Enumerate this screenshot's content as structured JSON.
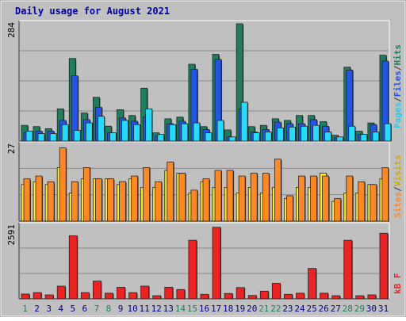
{
  "chart_data": {
    "type": "bar",
    "title": "Daily usage for August 2021",
    "categories": [
      "1",
      "2",
      "3",
      "4",
      "5",
      "6",
      "7",
      "8",
      "9",
      "10",
      "11",
      "12",
      "13",
      "14",
      "15",
      "16",
      "17",
      "18",
      "19",
      "20",
      "21",
      "22",
      "23",
      "24",
      "25",
      "26",
      "27",
      "28",
      "29",
      "30",
      "31"
    ],
    "weekend_days": [
      "1",
      "7",
      "8",
      "14",
      "15",
      "21",
      "22",
      "28",
      "29"
    ],
    "panels": [
      {
        "id": "hits-panel",
        "ymax_label": "284",
        "ymax": 284,
        "series": [
          {
            "name": "Hits",
            "color": "#1e7e5e",
            "values": [
              38,
              35,
              30,
              78,
              200,
              68,
              106,
              36,
              76,
              62,
              128,
              20,
              54,
              58,
              186,
              35,
              210,
              27,
              284,
              35,
              38,
              54,
              50,
              62,
              62,
              47,
              14,
              179,
              24,
              44,
              208
            ]
          },
          {
            "name": "Files",
            "color": "#2255ee",
            "values": [
              20,
              24,
              24,
              50,
              158,
              52,
              82,
              20,
              56,
              48,
              58,
              12,
              42,
              48,
              174,
              28,
              198,
              10,
              78,
              22,
              28,
              46,
              42,
              42,
              52,
              36,
              8,
              172,
              16,
              40,
              194
            ]
          },
          {
            "name": "Pages",
            "color": "#22ddff",
            "values": [
              24,
              18,
              18,
              40,
              26,
              44,
              60,
              20,
              50,
              40,
              78,
              16,
              40,
              42,
              44,
              20,
              50,
              10,
              94,
              20,
              22,
              32,
              34,
              36,
              38,
              22,
              10,
              36,
              16,
              22,
              42
            ]
          }
        ],
        "axis_labels": [
          "Pages",
          "/",
          "Files",
          "/",
          "Hits"
        ],
        "axis_colors": [
          "#22ccee",
          "#333333",
          "#2255ee",
          "#333333",
          "#1e7e5e"
        ]
      },
      {
        "id": "sites-panel",
        "ymax_label": "27",
        "ymax": 27,
        "series": [
          {
            "name": "Visits",
            "color": "#ffee22",
            "values": [
              13,
              14,
              13,
              19,
              10,
              15,
              15,
              15,
              13,
              15,
              12,
              12,
              18,
              17,
              10,
              14,
              12,
              12,
              10,
              12,
              10,
              12,
              8,
              12,
              12,
              17,
              7,
              10,
              10,
              13,
              15
            ]
          },
          {
            "name": "Sites",
            "color": "#ff8822",
            "values": [
              15,
              16,
              14,
              26,
              14,
              19,
              15,
              15,
              14,
              16,
              19,
              14,
              21,
              17,
              11,
              15,
              18,
              18,
              16,
              17,
              17,
              22,
              9,
              16,
              16,
              16,
              8,
              16,
              14,
              13,
              19
            ]
          }
        ],
        "axis_labels": [
          "Sites",
          "/",
          "Visits"
        ],
        "axis_colors": [
          "#ff8822",
          "#333333",
          "#ccaa00"
        ]
      },
      {
        "id": "kb-panel",
        "ymax_label": "2591",
        "ymax": 2591,
        "series": [
          {
            "name": "kB F",
            "color": "#ee2222",
            "values": [
              170,
              220,
              140,
              450,
              2240,
              220,
              630,
              200,
              410,
              220,
              450,
              110,
              410,
              330,
              2080,
              160,
              2540,
              190,
              400,
              120,
              270,
              550,
              160,
              200,
              1080,
              200,
              110,
              2080,
              110,
              140,
              2330
            ]
          }
        ],
        "axis_labels": [
          "kB F"
        ],
        "axis_colors": [
          "#ee2222"
        ]
      }
    ]
  }
}
